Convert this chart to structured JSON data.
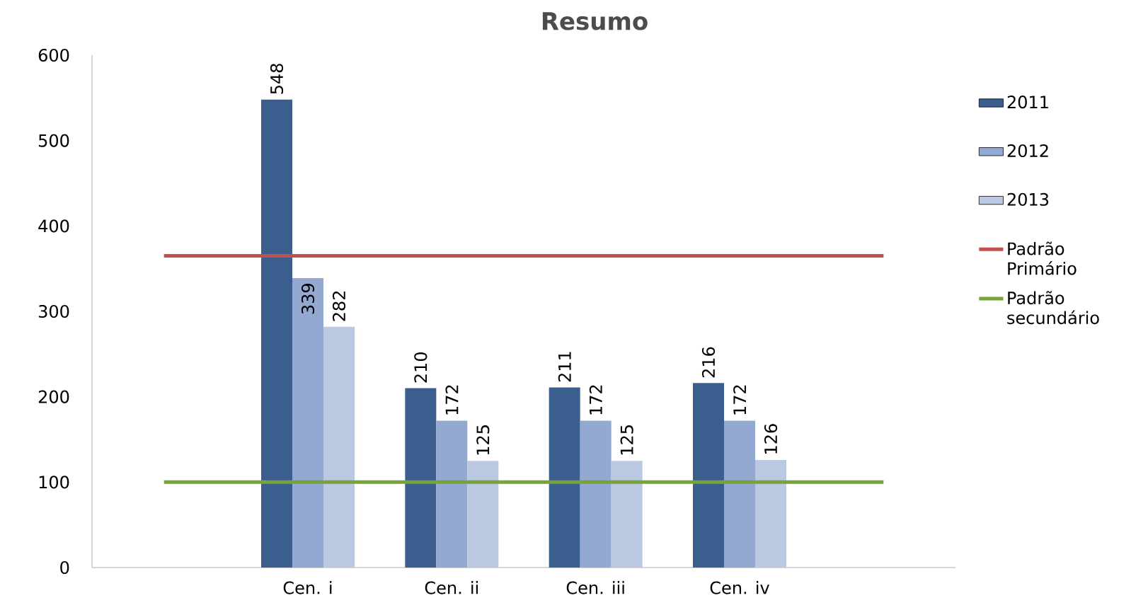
{
  "chart_data": {
    "type": "bar",
    "title": "Resumo",
    "categories": [
      null,
      "Cen. i",
      "Cen. ii",
      "Cen. iii",
      "Cen. iv",
      null
    ],
    "series": [
      {
        "name": "2011",
        "color": "#3a5f8e",
        "values": [
          null,
          548,
          210,
          211,
          216,
          null
        ],
        "value_labels": [
          null,
          "548",
          "210",
          "211",
          "216",
          null
        ]
      },
      {
        "name": "2012",
        "color": "#94a9d2",
        "values": [
          null,
          339,
          172,
          172,
          172,
          null
        ],
        "value_labels": [
          null,
          "339",
          "172",
          "172",
          "172",
          null
        ]
      },
      {
        "name": "2013",
        "color": "#bac8e1",
        "values": [
          null,
          282,
          125,
          125,
          126,
          null
        ],
        "value_labels": [
          null,
          "282",
          "125",
          "125",
          "126",
          null
        ]
      },
      {
        "name": "Padrão Primário",
        "type": "line",
        "color": "#c0504d",
        "values": [
          365,
          365,
          365,
          365,
          365,
          365
        ]
      },
      {
        "name": "Padrão secundário",
        "type": "line",
        "color": "#77a33a",
        "values": [
          100,
          100,
          100,
          100,
          100,
          100
        ]
      }
    ],
    "ylim": [
      0,
      600
    ],
    "yticks": [
      0,
      100,
      200,
      300,
      400,
      500,
      600
    ],
    "legend": "right"
  }
}
